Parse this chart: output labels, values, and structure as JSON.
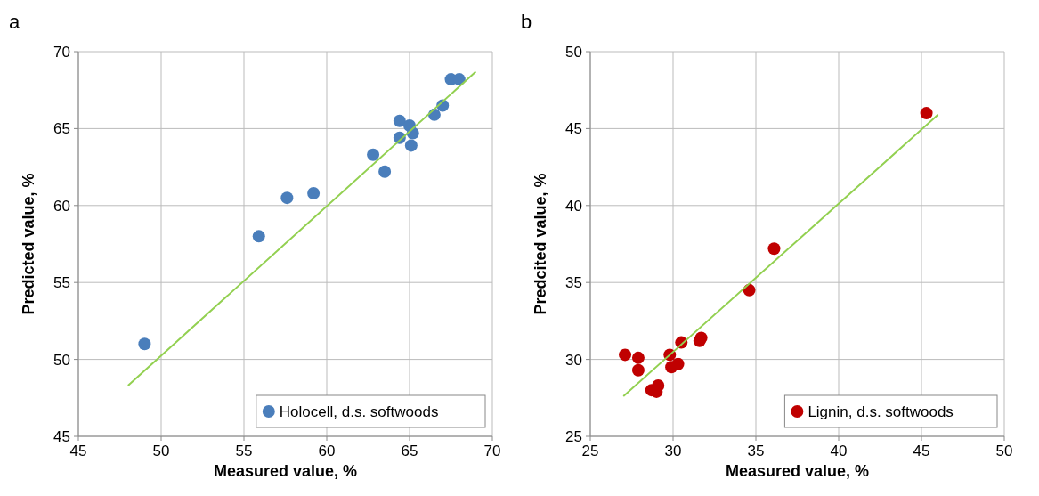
{
  "chart_data": [
    {
      "type": "scatter",
      "title": "a",
      "xlabel": "Measured value, %",
      "ylabel": "Predicted value, %",
      "xlim": [
        45,
        70
      ],
      "ylim": [
        45,
        70
      ],
      "xticks": [
        45,
        50,
        55,
        60,
        65,
        70
      ],
      "yticks": [
        45,
        50,
        55,
        60,
        65,
        70
      ],
      "grid": true,
      "legend": "bottom right",
      "series": [
        {
          "name": "Holocell, d.s. softwoods",
          "color": "#4a7ebb",
          "marker": "circle",
          "x": [
            49,
            55.9,
            57.6,
            59.2,
            62.8,
            63.5,
            64.4,
            64.4,
            65,
            65.2,
            65.1,
            66.5,
            67,
            67.5,
            68
          ],
          "values": [
            51,
            58,
            60.5,
            60.8,
            63.3,
            62.2,
            65.5,
            64.4,
            65.2,
            64.7,
            63.9,
            65.9,
            66.5,
            68.2,
            68.2
          ]
        },
        {
          "type": "line",
          "color": "#92d050",
          "x": [
            48,
            69
          ],
          "values": [
            48.3,
            68.7
          ]
        }
      ]
    },
    {
      "type": "scatter",
      "title": "b",
      "xlabel": "Measured value, %",
      "ylabel": "Predcited value, %",
      "xlim": [
        25,
        50
      ],
      "ylim": [
        25,
        50
      ],
      "xticks": [
        25,
        30,
        35,
        40,
        45,
        50
      ],
      "yticks": [
        25,
        30,
        35,
        40,
        45,
        50
      ],
      "grid": true,
      "legend": "bottom right",
      "series": [
        {
          "name": "Lignin, d.s. softwoods",
          "color": "#c00000",
          "marker": "circle",
          "x": [
            27.1,
            27.9,
            27.9,
            28.7,
            29,
            29.1,
            29.8,
            29.9,
            30.3,
            30.5,
            31.6,
            31.7,
            34.6,
            36.1,
            45.3
          ],
          "values": [
            30.3,
            30.1,
            29.3,
            28,
            27.9,
            28.3,
            30.3,
            29.5,
            29.7,
            31.1,
            31.2,
            31.4,
            34.5,
            37.2,
            46
          ]
        },
        {
          "type": "line",
          "color": "#92d050",
          "x": [
            27,
            46
          ],
          "values": [
            27.6,
            45.9
          ]
        }
      ]
    }
  ]
}
